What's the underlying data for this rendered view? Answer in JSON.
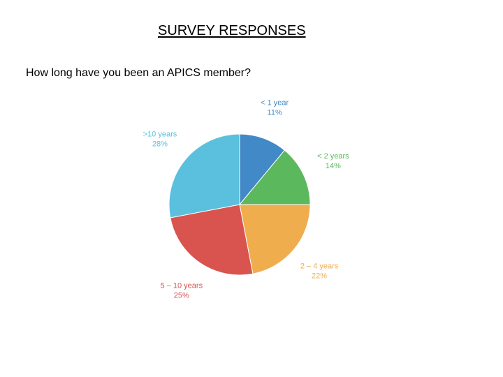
{
  "slide": {
    "title": "SURVEY RESPONSES",
    "question": "How long have you been an APICS member?"
  },
  "chart_data": {
    "type": "pie",
    "title": "",
    "start_angle_deg": 0,
    "direction": "clockwise",
    "legend": "none",
    "slices": [
      {
        "label": "< 1 year",
        "value": 11,
        "value_label": "11%",
        "color": "#4189c7"
      },
      {
        "label": "< 2 years",
        "value": 14,
        "value_label": "14%",
        "color": "#5cb85c"
      },
      {
        "label": "2 – 4 years",
        "value": 22,
        "value_label": "22%",
        "color": "#f0ad4e"
      },
      {
        "label": "5 – 10 years",
        "value": 25,
        "value_label": "25%",
        "color": "#d9534f"
      },
      {
        "label": ">10 years",
        "value": 28,
        "value_label": "28%",
        "color": "#5bc0de"
      }
    ]
  }
}
